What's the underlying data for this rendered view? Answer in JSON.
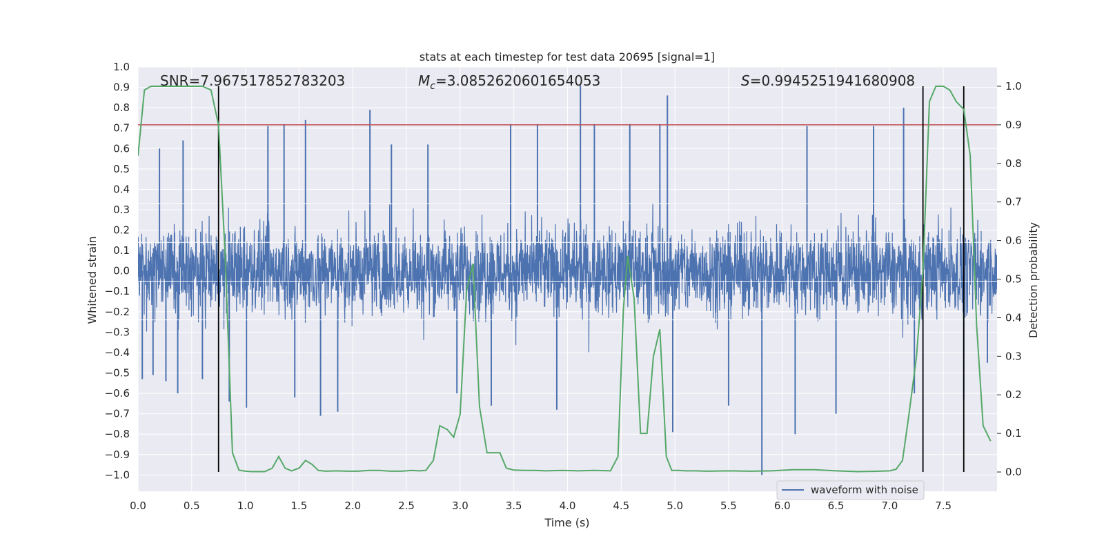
{
  "chart_data": {
    "type": "line",
    "title": "stats at each timestep for test data 20695 [signal=1]",
    "xlabel": "Time (s)",
    "ylabel": "Whitened strain",
    "y2label": "Detection probability",
    "xlim": [
      0.0,
      8.0
    ],
    "ylim": [
      -1.08,
      1.0
    ],
    "y2lim": [
      -0.05,
      1.05
    ],
    "xticks": [
      0.0,
      0.5,
      1.0,
      1.5,
      2.0,
      2.5,
      3.0,
      3.5,
      4.0,
      4.5,
      5.0,
      5.5,
      6.0,
      6.5,
      7.0,
      7.5
    ],
    "xtick_labels": [
      "0.0",
      "0.5",
      "1.0",
      "1.5",
      "2.0",
      "2.5",
      "3.0",
      "3.5",
      "4.0",
      "4.5",
      "5.0",
      "5.5",
      "6.0",
      "6.5",
      "7.0",
      "7.5"
    ],
    "yticks": [
      -1.0,
      -0.9,
      -0.8,
      -0.7,
      -0.6,
      -0.5,
      -0.4,
      -0.3,
      -0.2,
      -0.1,
      0.0,
      0.1,
      0.2,
      0.3,
      0.4,
      0.5,
      0.6,
      0.7,
      0.8,
      0.9,
      1.0
    ],
    "ytick_labels": [
      "−1.0",
      "−0.9",
      "−0.8",
      "−0.7",
      "−0.6",
      "−0.5",
      "−0.4",
      "−0.3",
      "−0.2",
      "−0.1",
      "0.0",
      "0.1",
      "0.2",
      "0.3",
      "0.4",
      "0.5",
      "0.6",
      "0.7",
      "0.8",
      "0.9",
      "1.0"
    ],
    "y2ticks": [
      0.0,
      0.1,
      0.2,
      0.3,
      0.4,
      0.5,
      0.6,
      0.7,
      0.8,
      0.9,
      1.0
    ],
    "y2tick_labels": [
      "0.0",
      "0.1",
      "0.2",
      "0.3",
      "0.4",
      "0.5",
      "0.6",
      "0.7",
      "0.8",
      "0.9",
      "1.0"
    ],
    "annotations": {
      "snr": "SNR=7.967517852783203",
      "mc_symbol": "M",
      "mc_subscript": "c",
      "mc_value": "=3.0852620601654053",
      "s_symbol": "S",
      "s_value": "=0.9945251941680908"
    },
    "legend": {
      "label": "waveform with noise",
      "location": "lower-right"
    },
    "grid": true,
    "threshold": {
      "axis": "right",
      "value": 0.9,
      "color": "#c44e52"
    },
    "vertical_markers": [
      0.75,
      7.31,
      7.69
    ],
    "waveform": {
      "name": "waveform with noise",
      "color": "#4c72b0",
      "axis": "left",
      "x_range": [
        0.0,
        8.0
      ],
      "noise_envelope": {
        "typical_abs": 0.33,
        "spike_peaks": [
          {
            "x": 0.04,
            "y": -0.53
          },
          {
            "x": 0.14,
            "y": -0.51
          },
          {
            "x": 0.2,
            "y": 0.6
          },
          {
            "x": 0.26,
            "y": -0.54
          },
          {
            "x": 0.37,
            "y": -0.6
          },
          {
            "x": 0.42,
            "y": 0.64
          },
          {
            "x": 0.6,
            "y": -0.53
          },
          {
            "x": 0.85,
            "y": -0.64
          },
          {
            "x": 1.01,
            "y": -0.67
          },
          {
            "x": 1.21,
            "y": 0.71
          },
          {
            "x": 1.36,
            "y": 0.72
          },
          {
            "x": 1.46,
            "y": -0.62
          },
          {
            "x": 1.56,
            "y": 0.74
          },
          {
            "x": 1.7,
            "y": -0.71
          },
          {
            "x": 1.86,
            "y": -0.69
          },
          {
            "x": 2.16,
            "y": 0.79
          },
          {
            "x": 2.36,
            "y": 0.62
          },
          {
            "x": 2.7,
            "y": 0.62
          },
          {
            "x": 2.97,
            "y": -0.6
          },
          {
            "x": 3.29,
            "y": -0.66
          },
          {
            "x": 3.47,
            "y": 0.72
          },
          {
            "x": 3.72,
            "y": 0.72
          },
          {
            "x": 3.9,
            "y": -0.68
          },
          {
            "x": 4.12,
            "y": 0.91
          },
          {
            "x": 4.25,
            "y": 0.72
          },
          {
            "x": 4.58,
            "y": 0.72
          },
          {
            "x": 4.86,
            "y": 0.72
          },
          {
            "x": 4.93,
            "y": 0.86
          },
          {
            "x": 4.98,
            "y": -0.79
          },
          {
            "x": 5.5,
            "y": -0.66
          },
          {
            "x": 5.81,
            "y": -1.0
          },
          {
            "x": 6.12,
            "y": -0.8
          },
          {
            "x": 6.23,
            "y": 0.71
          },
          {
            "x": 6.5,
            "y": -0.7
          },
          {
            "x": 6.85,
            "y": 0.71
          },
          {
            "x": 7.13,
            "y": 0.8
          },
          {
            "x": 7.23,
            "y": -0.6
          },
          {
            "x": 7.69,
            "y": -0.63
          },
          {
            "x": 7.91,
            "y": -0.45
          }
        ]
      }
    },
    "probability": {
      "name": "detection probability",
      "color": "#55a868",
      "axis": "right",
      "x": [
        0.0,
        0.06,
        0.12,
        0.2,
        0.3,
        0.4,
        0.5,
        0.6,
        0.68,
        0.75,
        0.81,
        0.88,
        0.94,
        1.0,
        1.06,
        1.12,
        1.18,
        1.25,
        1.31,
        1.37,
        1.43,
        1.5,
        1.56,
        1.62,
        1.68,
        1.75,
        1.85,
        1.95,
        2.05,
        2.15,
        2.25,
        2.35,
        2.45,
        2.55,
        2.62,
        2.68,
        2.75,
        2.81,
        2.88,
        2.94,
        3.0,
        3.06,
        3.12,
        3.18,
        3.25,
        3.31,
        3.37,
        3.43,
        3.5,
        3.6,
        3.7,
        3.8,
        3.95,
        4.1,
        4.25,
        4.4,
        4.47,
        4.52,
        4.56,
        4.62,
        4.68,
        4.74,
        4.8,
        4.86,
        4.92,
        4.97,
        5.03,
        5.1,
        5.2,
        5.3,
        5.5,
        5.7,
        5.9,
        6.1,
        6.3,
        6.5,
        6.7,
        6.9,
        7.0,
        7.06,
        7.12,
        7.18,
        7.25,
        7.31,
        7.37,
        7.43,
        7.5,
        7.56,
        7.62,
        7.69,
        7.75,
        7.81,
        7.87,
        7.94
      ],
      "y": [
        0.82,
        0.99,
        1.0,
        1.0,
        1.0,
        1.0,
        1.0,
        1.0,
        0.99,
        0.9,
        0.57,
        0.05,
        0.005,
        0.002,
        0.001,
        0.001,
        0.001,
        0.01,
        0.04,
        0.01,
        0.003,
        0.01,
        0.03,
        0.02,
        0.004,
        0.002,
        0.003,
        0.002,
        0.002,
        0.004,
        0.004,
        0.002,
        0.002,
        0.004,
        0.003,
        0.004,
        0.03,
        0.12,
        0.11,
        0.09,
        0.15,
        0.47,
        0.54,
        0.17,
        0.05,
        0.05,
        0.05,
        0.01,
        0.005,
        0.004,
        0.004,
        0.003,
        0.004,
        0.003,
        0.004,
        0.003,
        0.04,
        0.42,
        0.56,
        0.45,
        0.1,
        0.1,
        0.3,
        0.37,
        0.04,
        0.004,
        0.004,
        0.003,
        0.003,
        0.002,
        0.003,
        0.002,
        0.003,
        0.006,
        0.006,
        0.003,
        0.001,
        0.002,
        0.003,
        0.007,
        0.03,
        0.15,
        0.3,
        0.52,
        0.96,
        1.0,
        1.0,
        0.99,
        0.96,
        0.94,
        0.82,
        0.38,
        0.12,
        0.08
      ]
    }
  }
}
